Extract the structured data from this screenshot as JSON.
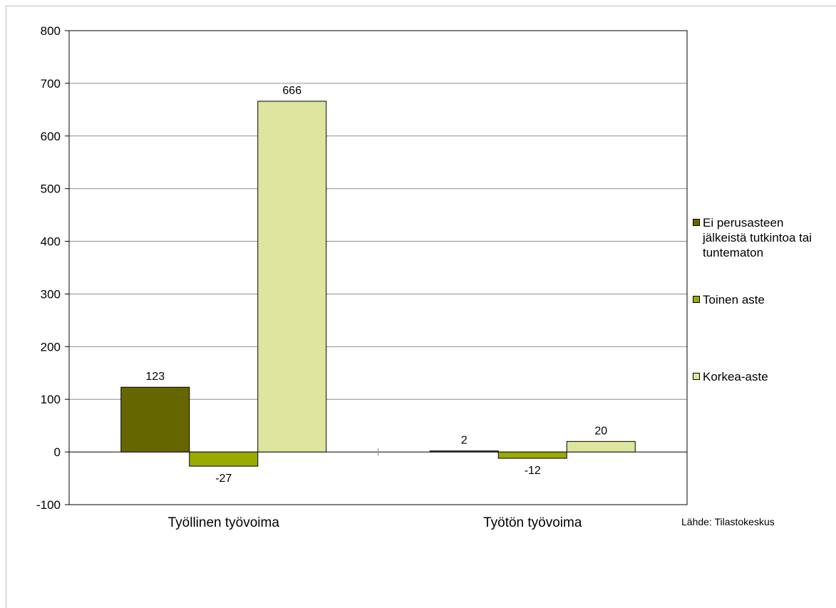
{
  "chart_data": {
    "type": "bar",
    "categories": [
      "Työllinen työvoima",
      "Työtön työvoima"
    ],
    "series": [
      {
        "name": "Ei perusasteen\njälkeistä tutkintoa tai\ntuntematon",
        "values": [
          123,
          2
        ],
        "color": "#666600"
      },
      {
        "name": "Toinen aste",
        "values": [
          -27,
          -12
        ],
        "color": "#99aa00"
      },
      {
        "name": "Korkea-aste",
        "values": [
          666,
          20
        ],
        "color": "#dde59e"
      }
    ],
    "ylim": [
      -100,
      800
    ],
    "yticks": [
      -100,
      0,
      100,
      200,
      300,
      400,
      500,
      600,
      700,
      800
    ],
    "grid": true,
    "legend_position": "right",
    "data_labels": true
  },
  "source_note": "Lähde: Tilastokeskus"
}
